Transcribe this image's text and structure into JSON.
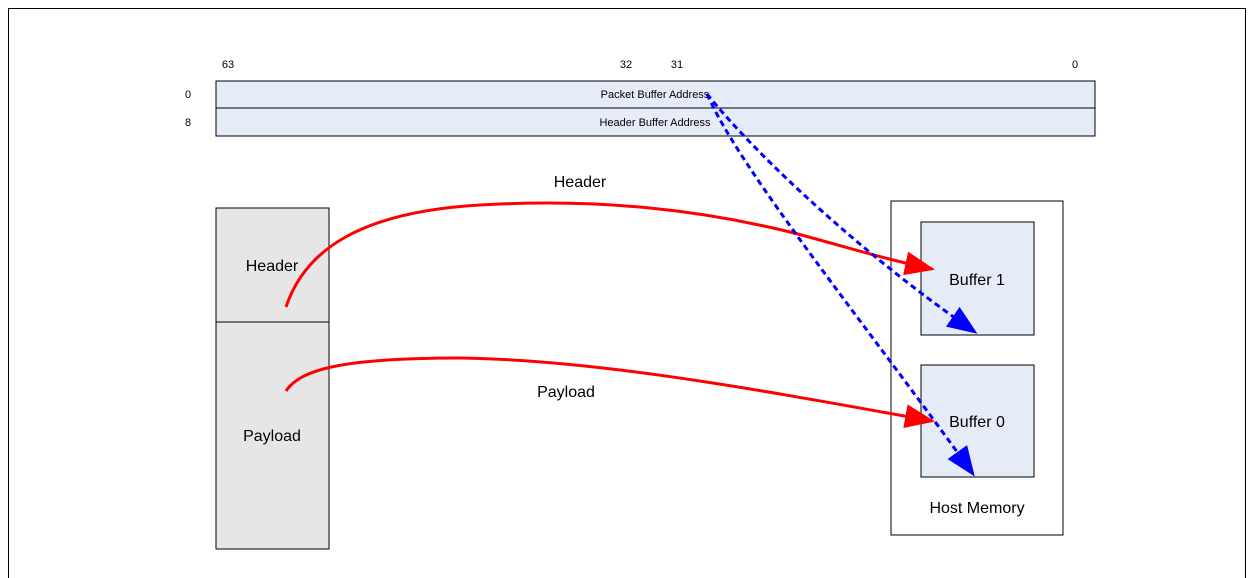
{
  "descriptor": {
    "bit_labels": [
      "63",
      "32",
      "31",
      "0"
    ],
    "row_offsets": [
      "0",
      "8"
    ],
    "rows": [
      "Packet Buffer Address",
      "Header Buffer Address"
    ]
  },
  "packet": {
    "header_label": "Header",
    "payload_label": "Payload"
  },
  "flows": {
    "header_label": "Header",
    "payload_label": "Payload"
  },
  "host_memory": {
    "title": "Host Memory",
    "buffer1_label": "Buffer 1",
    "buffer0_label": "Buffer 0"
  },
  "colors": {
    "descriptor_fill": "#e6ecf7",
    "packet_fill": "#e6e6e6",
    "buffer_fill": "#e6ecf7",
    "data_arrow": "#ff0000",
    "pointer_arrow": "#0000ff"
  }
}
